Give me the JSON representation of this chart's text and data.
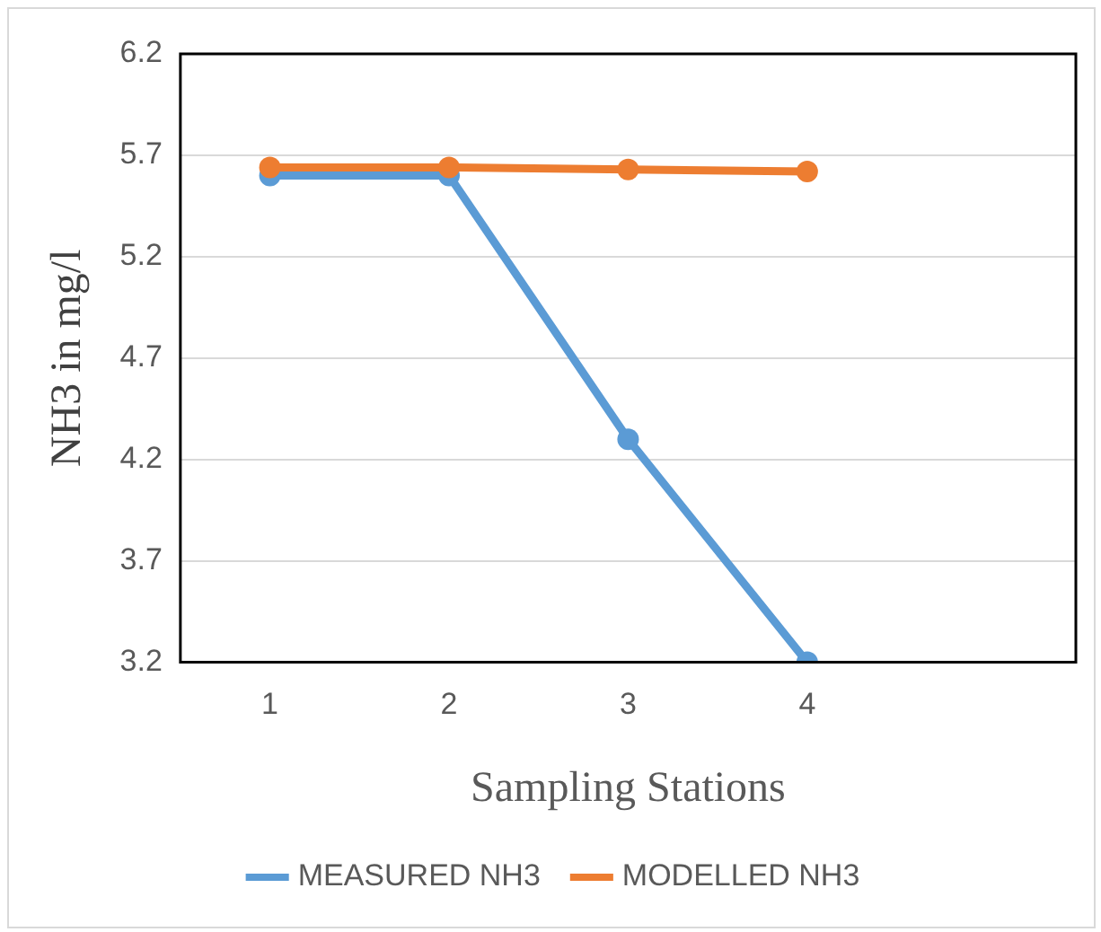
{
  "chart_data": {
    "type": "line",
    "xlabel": "Sampling Stations",
    "ylabel": "NH3 in mg/l",
    "categories": [
      "1",
      "2",
      "3",
      "4",
      null
    ],
    "series": [
      {
        "name": "MEASURED NH3",
        "color": "#5b9bd5",
        "values": [
          5.6,
          5.6,
          4.3,
          3.2,
          null
        ]
      },
      {
        "name": "MODELLED NH3",
        "color": "#ed7d31",
        "values": [
          5.64,
          5.64,
          5.63,
          5.62,
          null
        ]
      }
    ],
    "ylim": [
      3.2,
      6.2
    ],
    "yticks": [
      3.2,
      3.7,
      4.2,
      4.7,
      5.2,
      5.7,
      6.2
    ],
    "grid": "y",
    "legend": "bottom",
    "marker": "circle",
    "line_style": "solid"
  }
}
